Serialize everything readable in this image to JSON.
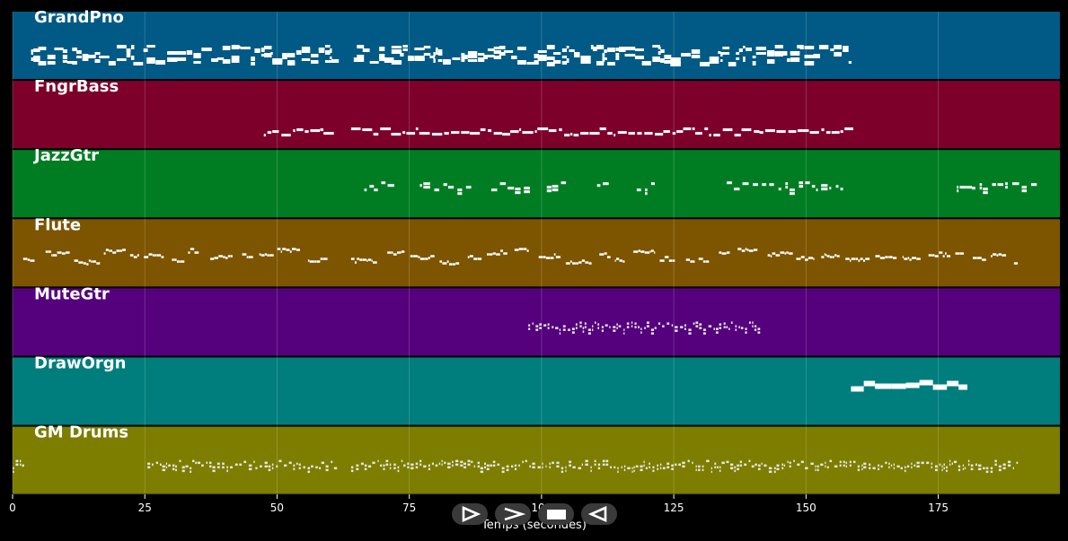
{
  "chart_data": {
    "type": "piano-roll",
    "xlabel": "Temps (secondes)",
    "xlim": [
      0,
      198
    ],
    "xticks": [
      0,
      25,
      50,
      75,
      100,
      125,
      150,
      175
    ],
    "tracks": [
      {
        "name": "GrandPno",
        "color": "#005a85",
        "notes": [
          [
            3.5,
            60.5
          ],
          [
            64.5,
            158.5
          ]
        ],
        "density": "dense"
      },
      {
        "name": "FngrBass",
        "color": "#7d002b",
        "notes": [
          [
            47.5,
            61
          ],
          [
            64,
            158.5
          ]
        ],
        "density": "line"
      },
      {
        "name": "JazzGtr",
        "color": "#007d23",
        "notes": [
          [
            66.5,
            71
          ],
          [
            77,
            86
          ],
          [
            90.5,
            97
          ],
          [
            101,
            104
          ],
          [
            110.5,
            112
          ],
          [
            118,
            121
          ],
          [
            135,
            157
          ],
          [
            178.5,
            194
          ]
        ],
        "density": "sparse"
      },
      {
        "name": "Flute",
        "color": "#7d5500",
        "notes": [
          [
            2,
            61
          ],
          [
            64,
            190
          ]
        ],
        "density": "phrases"
      },
      {
        "name": "MuteGtr",
        "color": "#55007d",
        "notes": [
          [
            97.5,
            141.5
          ]
        ],
        "density": "ticks"
      },
      {
        "name": "DrawOrgn",
        "color": "#007d7d",
        "notes": [
          [
            158.5,
            180.5
          ]
        ],
        "density": "blocks"
      },
      {
        "name": "GM Drums",
        "color": "#7d7d00",
        "notes": [
          [
            0,
            2
          ],
          [
            25.5,
            61
          ],
          [
            64,
            190
          ]
        ],
        "density": "ticks"
      }
    ]
  },
  "controls": {
    "icons": [
      "step-forward-icon",
      "fast-forward-icon",
      "stop-icon",
      "rewind-icon"
    ]
  }
}
